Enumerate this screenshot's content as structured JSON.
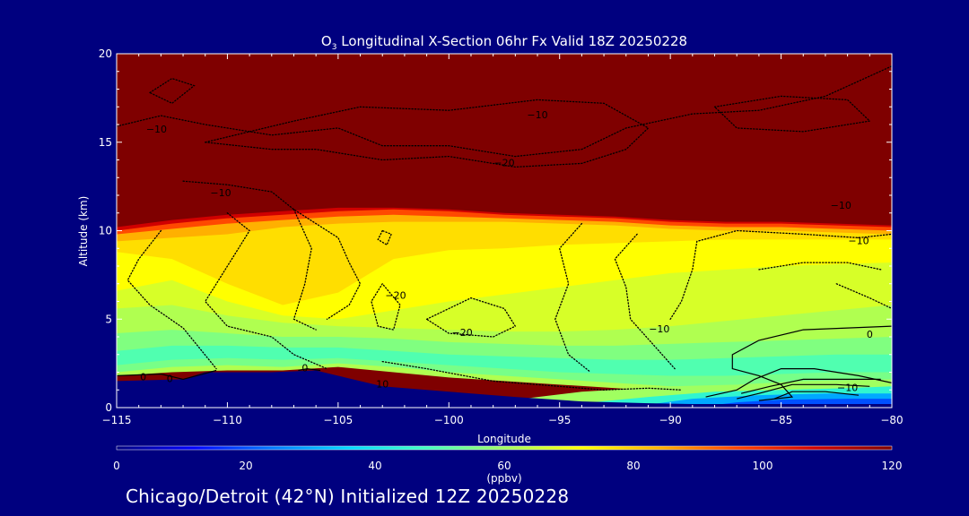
{
  "chart_data": {
    "type": "heatmap",
    "title_species": "O",
    "title_subscript": "3",
    "title_rest": " Longitudinal X-Section 06hr  Fx Valid 18Z 20250228",
    "xlabel": "Longitude",
    "ylabel": "Altitude (km)",
    "xlim": [
      -115,
      -80
    ],
    "ylim": [
      0,
      20
    ],
    "x_ticks": [
      -115,
      -110,
      -105,
      -100,
      -95,
      -90,
      -85,
      -80
    ],
    "x_tick_labels": [
      "−115",
      "−110",
      "−105",
      "−100",
      "−95",
      "−90",
      "−85",
      "−80"
    ],
    "y_ticks": [
      0,
      5,
      10,
      15,
      20
    ],
    "y_tick_labels": [
      "0",
      "5",
      "10",
      "15",
      "20"
    ],
    "colorbar": {
      "min": 0,
      "max": 120,
      "ticks": [
        0,
        20,
        40,
        60,
        80,
        100,
        120
      ],
      "tick_labels": [
        "0",
        "20",
        "40",
        "60",
        "80",
        "100",
        "120"
      ],
      "unit": "(ppbv)",
      "colors": [
        "#00007f",
        "#0000ff",
        "#0078ff",
        "#00d8ff",
        "#40ffc0",
        "#a0ff60",
        "#ffff00",
        "#ffb000",
        "#ff4000",
        "#d00000",
        "#7f0000"
      ]
    },
    "ozone_layers": [
      {
        "ppbv": 62,
        "base_km": [
          1.8,
          2.0,
          2.1,
          2.1,
          2.3,
          2.0,
          1.7,
          1.5,
          1.3,
          1.1,
          0.9,
          0.8,
          0.8,
          0.8,
          0.8
        ]
      },
      {
        "ppbv": 55,
        "base_km": [
          2.0,
          2.3,
          2.4,
          2.3,
          2.5,
          2.3,
          2.0,
          1.8,
          1.6,
          1.4,
          1.2,
          1.2,
          1.2,
          1.3,
          1.3
        ]
      },
      {
        "ppbv": 50,
        "base_km": [
          2.4,
          2.7,
          2.8,
          2.7,
          2.8,
          2.6,
          2.4,
          2.2,
          2.0,
          1.9,
          1.8,
          1.8,
          1.9,
          2.0,
          2.0
        ]
      },
      {
        "ppbv": 56,
        "base_km": [
          3.2,
          3.5,
          3.5,
          3.4,
          3.4,
          3.2,
          3.0,
          2.9,
          2.8,
          2.7,
          2.7,
          2.8,
          2.9,
          3.0,
          3.0
        ]
      },
      {
        "ppbv": 62,
        "base_km": [
          4.2,
          4.4,
          4.2,
          4.0,
          4.0,
          3.9,
          3.7,
          3.6,
          3.5,
          3.5,
          3.6,
          3.7,
          3.8,
          3.9,
          4.0
        ]
      },
      {
        "ppbv": 67,
        "base_km": [
          5.6,
          5.8,
          5.2,
          4.8,
          4.6,
          4.5,
          4.4,
          4.3,
          4.3,
          4.4,
          4.6,
          4.9,
          5.2,
          5.5,
          5.8
        ]
      },
      {
        "ppbv": 72,
        "base_km": [
          6.6,
          7.2,
          6.0,
          5.2,
          5.0,
          5.5,
          6.0,
          6.4,
          6.8,
          7.2,
          7.6,
          7.8,
          8.0,
          8.1,
          8.2
        ]
      },
      {
        "ppbv": 77,
        "base_km": [
          8.8,
          8.4,
          7.0,
          5.8,
          6.5,
          8.4,
          8.9,
          9.0,
          9.2,
          9.3,
          9.4,
          9.5,
          9.5,
          9.5,
          9.5
        ]
      },
      {
        "ppbv": 84,
        "base_km": [
          9.4,
          9.6,
          9.8,
          10.2,
          10.4,
          10.5,
          10.5,
          10.5,
          10.4,
          10.3,
          10.1,
          10.0,
          10.0,
          9.9,
          9.8
        ]
      },
      {
        "ppbv": 95,
        "base_km": [
          9.8,
          10.1,
          10.4,
          10.6,
          10.8,
          10.9,
          10.8,
          10.7,
          10.6,
          10.5,
          10.3,
          10.2,
          10.2,
          10.1,
          10.0
        ]
      },
      {
        "ppbv": 108,
        "base_km": [
          10.0,
          10.4,
          10.7,
          10.9,
          11.1,
          11.2,
          11.1,
          10.9,
          10.8,
          10.7,
          10.5,
          10.4,
          10.4,
          10.3,
          10.2
        ]
      },
      {
        "ppbv": 120,
        "base_km": [
          10.2,
          10.6,
          10.9,
          11.1,
          11.3,
          11.3,
          11.2,
          11.0,
          10.9,
          10.8,
          10.6,
          10.5,
          10.5,
          10.4,
          10.3
        ]
      }
    ],
    "ozone_layer_lons": [
      -115,
      -112.5,
      -110,
      -107.5,
      -105,
      -102.5,
      -100,
      -97.5,
      -95,
      -92.5,
      -90,
      -87.5,
      -85,
      -82.5,
      -80
    ],
    "surface_ppbv": [
      20,
      30,
      45,
      60
    ],
    "terrain": {
      "lon": [
        -115,
        -112,
        -111,
        -110,
        -108,
        -106,
        -105,
        -103,
        -100,
        -97,
        -94,
        -91,
        -89,
        -86,
        -84,
        -82,
        -80
      ],
      "alt_km": [
        1.5,
        1.6,
        2.0,
        2.0,
        2.0,
        2.1,
        1.8,
        1.2,
        0.9,
        0.6,
        0.35,
        0.25,
        0.2,
        0.2,
        0.2,
        0.2,
        0.2
      ]
    },
    "contour_lines": [
      {
        "style": "dotted",
        "points": [
          [
            -113.5,
            17.8
          ],
          [
            -112.5,
            18.6
          ],
          [
            -111.5,
            18.2
          ],
          [
            -112.5,
            17.2
          ],
          [
            -113.5,
            17.8
          ]
        ]
      },
      {
        "style": "dotted",
        "points": [
          [
            -115,
            15.9
          ],
          [
            -113,
            16.5
          ],
          [
            -111,
            16.0
          ],
          [
            -108,
            15.4
          ],
          [
            -105,
            15.8
          ],
          [
            -103,
            14.8
          ],
          [
            -100,
            14.8
          ],
          [
            -97,
            14.2
          ],
          [
            -94,
            14.6
          ],
          [
            -92,
            15.8
          ],
          [
            -89,
            16.6
          ],
          [
            -86,
            16.8
          ],
          [
            -83,
            17.6
          ],
          [
            -80,
            19.3
          ]
        ]
      },
      {
        "style": "dotted",
        "points": [
          [
            -111,
            15.0
          ],
          [
            -108,
            14.6
          ],
          [
            -106,
            14.6
          ],
          [
            -103,
            14.0
          ],
          [
            -100,
            14.2
          ],
          [
            -97,
            13.6
          ],
          [
            -94,
            13.8
          ],
          [
            -92,
            14.6
          ],
          [
            -91,
            15.8
          ],
          [
            -93,
            17.2
          ],
          [
            -96,
            17.4
          ],
          [
            -100,
            16.8
          ],
          [
            -104,
            17.0
          ],
          [
            -107,
            16.2
          ],
          [
            -111,
            15.0
          ]
        ]
      },
      {
        "style": "dotted",
        "points": [
          [
            -88,
            17.0
          ],
          [
            -85,
            17.6
          ],
          [
            -82,
            17.4
          ],
          [
            -81,
            16.2
          ],
          [
            -84,
            15.6
          ],
          [
            -87,
            15.8
          ],
          [
            -88,
            17.0
          ]
        ]
      },
      {
        "style": "dotted",
        "points": [
          [
            -112,
            12.8
          ],
          [
            -110,
            12.6
          ],
          [
            -108,
            12.2
          ],
          [
            -107,
            11.2
          ],
          [
            -106,
            10.4
          ],
          [
            -105,
            9.6
          ],
          [
            -104.5,
            8.2
          ],
          [
            -104,
            7.0
          ],
          [
            -104.5,
            5.8
          ],
          [
            -105.5,
            5.0
          ]
        ]
      },
      {
        "style": "dotted",
        "points": [
          [
            -113,
            10.0
          ],
          [
            -114,
            8.4
          ],
          [
            -114.5,
            7.2
          ],
          [
            -113.5,
            5.8
          ],
          [
            -112,
            4.5
          ],
          [
            -110.5,
            2.2
          ]
        ]
      },
      {
        "style": "dotted",
        "points": [
          [
            -110,
            11.0
          ],
          [
            -109,
            10.0
          ],
          [
            -109.5,
            9.0
          ],
          [
            -110.5,
            7.0
          ],
          [
            -111,
            6.0
          ],
          [
            -110,
            4.6
          ],
          [
            -108,
            4.0
          ],
          [
            -107,
            3.0
          ],
          [
            -105.5,
            2.2
          ]
        ]
      },
      {
        "style": "dotted",
        "points": [
          [
            -107,
            11.2
          ],
          [
            -106.2,
            9.0
          ],
          [
            -106.5,
            7.0
          ],
          [
            -107,
            5.0
          ],
          [
            -106,
            4.4
          ]
        ]
      },
      {
        "style": "dotted",
        "points": [
          [
            -103,
            10.0
          ],
          [
            -103.2,
            9.5
          ],
          [
            -102.8,
            9.2
          ],
          [
            -102.6,
            9.8
          ],
          [
            -103,
            10.0
          ]
        ]
      },
      {
        "style": "dotted",
        "points": [
          [
            -103,
            7.0
          ],
          [
            -103.5,
            6.0
          ],
          [
            -103.2,
            4.6
          ],
          [
            -102.5,
            4.4
          ],
          [
            -102.2,
            5.8
          ],
          [
            -103,
            7.0
          ]
        ]
      },
      {
        "style": "dotted",
        "points": [
          [
            -101,
            5.0
          ],
          [
            -99,
            6.2
          ],
          [
            -97.5,
            5.6
          ],
          [
            -97.0,
            4.6
          ],
          [
            -98,
            4.0
          ],
          [
            -100,
            4.2
          ],
          [
            -101,
            5.0
          ]
        ]
      },
      {
        "style": "dotted",
        "points": [
          [
            -103,
            2.6
          ],
          [
            -101,
            2.2
          ],
          [
            -98,
            1.5
          ],
          [
            -95,
            1.2
          ],
          [
            -93,
            1.0
          ],
          [
            -91,
            1.1
          ],
          [
            -89.5,
            1.0
          ]
        ]
      },
      {
        "style": "dotted",
        "points": [
          [
            -94,
            10.4
          ],
          [
            -95,
            9.0
          ],
          [
            -94.6,
            7.0
          ],
          [
            -95.2,
            5.0
          ],
          [
            -94.6,
            3.0
          ],
          [
            -93.6,
            2.0
          ]
        ]
      },
      {
        "style": "dotted",
        "points": [
          [
            -91.5,
            9.8
          ],
          [
            -92.5,
            8.4
          ],
          [
            -92.0,
            6.8
          ],
          [
            -91.8,
            5.0
          ],
          [
            -90.8,
            3.6
          ],
          [
            -89.8,
            2.2
          ]
        ]
      },
      {
        "style": "dotted",
        "points": [
          [
            -90,
            5.0
          ],
          [
            -89.5,
            6.0
          ],
          [
            -89.0,
            7.8
          ],
          [
            -88.8,
            9.4
          ],
          [
            -87.0,
            10.0
          ],
          [
            -84.0,
            9.8
          ],
          [
            -81.5,
            9.6
          ],
          [
            -80,
            9.8
          ]
        ]
      },
      {
        "style": "dotted",
        "points": [
          [
            -86,
            7.8
          ],
          [
            -84,
            8.2
          ],
          [
            -82,
            8.2
          ],
          [
            -80.5,
            7.8
          ]
        ]
      },
      {
        "style": "dotted",
        "points": [
          [
            -82.5,
            7.0
          ],
          [
            -81,
            6.2
          ],
          [
            -80,
            5.6
          ]
        ]
      },
      {
        "style": "solid",
        "points": [
          [
            -80,
            4.6
          ],
          [
            -82,
            4.5
          ],
          [
            -84,
            4.4
          ],
          [
            -86,
            3.8
          ],
          [
            -87.2,
            3.0
          ],
          [
            -87.2,
            2.2
          ],
          [
            -86,
            1.8
          ],
          [
            -85,
            1.3
          ],
          [
            -84.5,
            0.6
          ],
          [
            -86,
            0.4
          ]
        ]
      },
      {
        "style": "solid",
        "points": [
          [
            -80,
            1.4
          ],
          [
            -81.5,
            1.8
          ],
          [
            -83.5,
            2.2
          ],
          [
            -85.0,
            2.2
          ],
          [
            -86.2,
            1.6
          ],
          [
            -87.0,
            1.0
          ],
          [
            -88.4,
            0.6
          ]
        ]
      },
      {
        "style": "solid",
        "points": [
          [
            -80.5,
            1.6
          ],
          [
            -82,
            1.6
          ],
          [
            -84,
            1.6
          ],
          [
            -85.5,
            1.2
          ],
          [
            -86.8,
            0.8
          ]
        ]
      },
      {
        "style": "solid",
        "points": [
          [
            -81,
            1.2
          ],
          [
            -82.5,
            1.3
          ],
          [
            -84.5,
            1.3
          ],
          [
            -86,
            0.8
          ],
          [
            -87,
            0.5
          ]
        ]
      },
      {
        "style": "solid",
        "points": [
          [
            -81.5,
            0.7
          ],
          [
            -83,
            0.9
          ],
          [
            -84.5,
            0.9
          ],
          [
            -85.3,
            0.5
          ]
        ]
      },
      {
        "style": "solid",
        "points": [
          [
            -115,
            1.8
          ],
          [
            -113,
            1.9
          ],
          [
            -112,
            1.6
          ],
          [
            -110.5,
            2.1
          ]
        ]
      },
      {
        "style": "solid",
        "points": [
          [
            -106.8,
            2.1
          ],
          [
            -106.4,
            2.2
          ],
          [
            -105.8,
            2.1
          ]
        ]
      }
    ],
    "contour_labels": [
      {
        "text": "−10",
        "x": -113.2,
        "y": 15.7
      },
      {
        "text": "−10",
        "x": -110.3,
        "y": 12.1
      },
      {
        "text": "−20",
        "x": -97.5,
        "y": 13.8
      },
      {
        "text": "−10",
        "x": -96.0,
        "y": 16.5
      },
      {
        "text": "−10",
        "x": -82.3,
        "y": 11.4
      },
      {
        "text": "−10",
        "x": -81.5,
        "y": 9.4
      },
      {
        "text": "−20",
        "x": -102.4,
        "y": 6.3
      },
      {
        "text": "−20",
        "x": -99.4,
        "y": 4.2
      },
      {
        "text": "−10",
        "x": -90.5,
        "y": 4.4
      },
      {
        "text": "0",
        "x": -81.0,
        "y": 4.1
      },
      {
        "text": "−10",
        "x": -82.0,
        "y": 1.1
      },
      {
        "text": "0",
        "x": -113.8,
        "y": 1.7
      },
      {
        "text": "0",
        "x": -112.6,
        "y": 1.6
      },
      {
        "text": "0",
        "x": -106.5,
        "y": 2.2
      },
      {
        "text": "10",
        "x": -103.0,
        "y": 1.3
      }
    ]
  },
  "footer": {
    "location_text": "Chicago/Detroit (42°N) Initialized 12Z 20250228"
  }
}
